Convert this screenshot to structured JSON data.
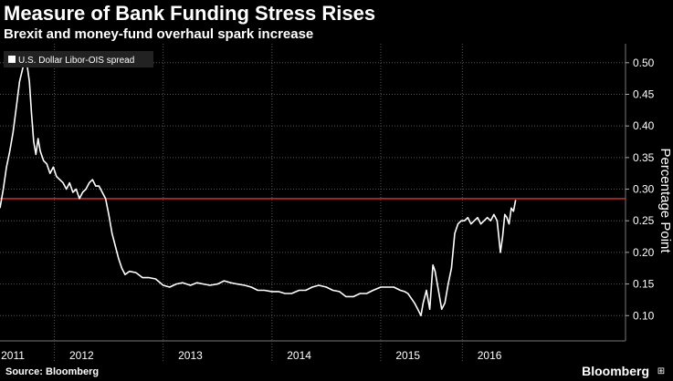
{
  "header": {
    "title": "Measure of Bank Funding Stress Rises",
    "subtitle": "Brexit and money-fund overhaul spark increase"
  },
  "footer": {
    "source": "Source: Bloomberg",
    "brand": "Bloomberg",
    "brand_mark": "⊞"
  },
  "chart_data": {
    "type": "line",
    "title": "Measure of Bank Funding Stress Rises",
    "subtitle": "Brexit and money-fund overhaul spark increase",
    "xlabel": "",
    "ylabel": "Percentage Point",
    "ylim": [
      0.06,
      0.53
    ],
    "xlim": [
      2011.0,
      2016.75
    ],
    "x_tick_labels": [
      "2011",
      "2012",
      "2013",
      "2014",
      "2015",
      "2016"
    ],
    "x_tick_positions": [
      2011.0,
      2011.75,
      2012.75,
      2013.75,
      2014.75,
      2015.5
    ],
    "y_ticks": [
      0.1,
      0.15,
      0.2,
      0.25,
      0.3,
      0.35,
      0.4,
      0.45,
      0.5
    ],
    "y_tick_labels": [
      "0.10",
      "0.15",
      "0.20",
      "0.25",
      "0.30",
      "0.35",
      "0.40",
      "0.45",
      "0.50"
    ],
    "grid": true,
    "legend": "top-left",
    "reference_line": {
      "value": 0.285,
      "color": "#e8302c"
    },
    "series": [
      {
        "name": "U.S. Dollar Libor-OIS spread",
        "color": "#ffffff",
        "x": [
          2011.0,
          2011.03,
          2011.06,
          2011.09,
          2011.12,
          2011.15,
          2011.18,
          2011.21,
          2011.23,
          2011.25,
          2011.27,
          2011.29,
          2011.31,
          2011.33,
          2011.35,
          2011.37,
          2011.4,
          2011.43,
          2011.46,
          2011.49,
          2011.52,
          2011.55,
          2011.58,
          2011.61,
          2011.64,
          2011.67,
          2011.7,
          2011.73,
          2011.76,
          2011.79,
          2011.82,
          2011.85,
          2011.88,
          2011.91,
          2011.94,
          2011.97,
          2012.0,
          2012.03,
          2012.06,
          2012.09,
          2012.12,
          2012.15,
          2012.19,
          2012.25,
          2012.31,
          2012.37,
          2012.43,
          2012.5,
          2012.56,
          2012.62,
          2012.68,
          2012.75,
          2012.81,
          2012.87,
          2012.93,
          2013.0,
          2013.06,
          2013.12,
          2013.18,
          2013.25,
          2013.31,
          2013.37,
          2013.43,
          2013.5,
          2013.56,
          2013.62,
          2013.68,
          2013.75,
          2013.81,
          2013.87,
          2013.93,
          2014.0,
          2014.06,
          2014.12,
          2014.18,
          2014.25,
          2014.31,
          2014.37,
          2014.43,
          2014.5,
          2014.56,
          2014.62,
          2014.68,
          2014.72,
          2014.75,
          2014.77,
          2014.79,
          2014.81,
          2014.84,
          2014.87,
          2014.89,
          2014.92,
          2014.95,
          2014.98,
          2015.0,
          2015.02,
          2015.04,
          2015.06,
          2015.09,
          2015.12,
          2015.15,
          2015.18,
          2015.21,
          2015.24,
          2015.27,
          2015.3,
          2015.33,
          2015.36,
          2015.39,
          2015.42,
          2015.45,
          2015.48,
          2015.51,
          2015.54,
          2015.57,
          2015.6,
          2015.62,
          2015.64,
          2015.66,
          2015.68,
          2015.7,
          2015.72,
          2015.74
        ],
        "values": [
          0.27,
          0.3,
          0.335,
          0.36,
          0.39,
          0.43,
          0.47,
          0.492,
          0.5,
          0.495,
          0.47,
          0.42,
          0.375,
          0.355,
          0.38,
          0.36,
          0.345,
          0.34,
          0.325,
          0.335,
          0.32,
          0.315,
          0.31,
          0.3,
          0.31,
          0.295,
          0.3,
          0.285,
          0.295,
          0.3,
          0.31,
          0.315,
          0.305,
          0.305,
          0.295,
          0.285,
          0.26,
          0.23,
          0.21,
          0.19,
          0.175,
          0.165,
          0.17,
          0.168,
          0.16,
          0.16,
          0.158,
          0.148,
          0.145,
          0.15,
          0.152,
          0.148,
          0.152,
          0.15,
          0.148,
          0.15,
          0.155,
          0.152,
          0.15,
          0.148,
          0.145,
          0.14,
          0.14,
          0.138,
          0.138,
          0.135,
          0.135,
          0.14,
          0.14,
          0.145,
          0.148,
          0.145,
          0.14,
          0.138,
          0.13,
          0.13,
          0.135,
          0.135,
          0.14,
          0.145,
          0.145,
          0.145,
          0.14,
          0.138,
          0.135,
          0.13,
          0.125,
          0.12,
          0.11,
          0.1,
          0.12,
          0.14,
          0.11,
          0.18,
          0.17,
          0.15,
          0.13,
          0.11,
          0.12,
          0.15,
          0.175,
          0.23,
          0.245,
          0.25,
          0.25,
          0.255,
          0.245,
          0.25,
          0.255,
          0.245,
          0.25,
          0.255,
          0.25,
          0.26,
          0.25,
          0.2,
          0.225,
          0.26,
          0.255,
          0.245,
          0.27,
          0.265,
          0.283
        ]
      }
    ]
  }
}
